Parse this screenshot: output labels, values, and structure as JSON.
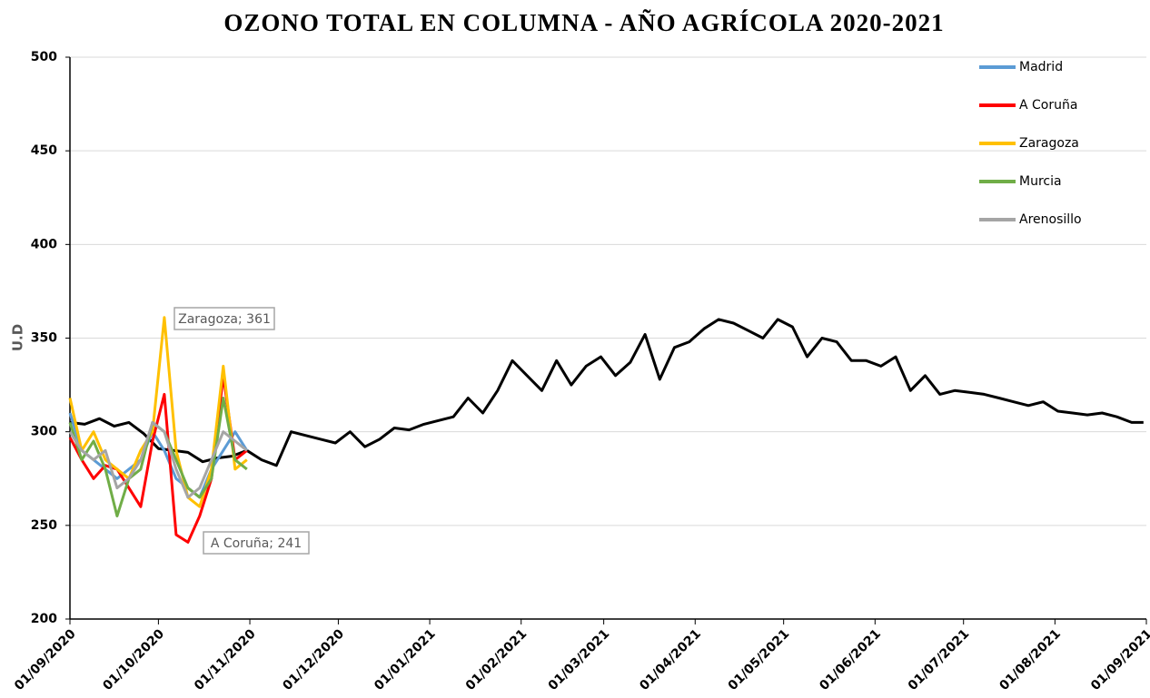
{
  "chart_data": {
    "type": "line",
    "title": "OZONO TOTAL EN COLUMNA - AÑO AGRÍCOLA 2020-2021",
    "y_label": "U.D",
    "xlim": [
      "01/09/2020",
      "01/09/2021"
    ],
    "xticks": [
      "01/09/2020",
      "01/10/2020",
      "01/11/2020",
      "01/12/2020",
      "01/01/2021",
      "01/02/2021",
      "01/03/2021",
      "01/04/2021",
      "01/05/2021",
      "01/06/2021",
      "01/07/2021",
      "01/08/2021",
      "01/09/2021"
    ],
    "ylim": [
      200,
      500
    ],
    "yticks": [
      200,
      250,
      300,
      350,
      400,
      450,
      500
    ],
    "grid": true,
    "legend": "top-right",
    "series": [
      {
        "color": "#000000",
        "x": [
          "01/09/2020",
          "06/09/2020",
          "11/09/2020",
          "16/09/2020",
          "21/09/2020",
          "26/09/2020",
          "01/10/2020",
          "06/10/2020",
          "11/10/2020",
          "16/10/2020",
          "21/10/2020",
          "26/10/2020",
          "31/10/2020",
          "05/11/2020",
          "10/11/2020",
          "15/11/2020",
          "20/11/2020",
          "25/11/2020",
          "30/11/2020",
          "05/12/2020",
          "10/12/2020",
          "15/12/2020",
          "20/12/2020",
          "25/12/2020",
          "30/12/2020",
          "04/01/2021",
          "09/01/2021",
          "14/01/2021",
          "19/01/2021",
          "24/01/2021",
          "29/01/2021",
          "03/02/2021",
          "08/02/2021",
          "13/02/2021",
          "18/02/2021",
          "23/02/2021",
          "28/02/2021",
          "05/03/2021",
          "10/03/2021",
          "15/03/2021",
          "20/03/2021",
          "25/03/2021",
          "30/03/2021",
          "04/04/2021",
          "09/04/2021",
          "14/04/2021",
          "19/04/2021",
          "24/04/2021",
          "29/04/2021",
          "04/05/2021",
          "09/05/2021",
          "14/05/2021",
          "19/05/2021",
          "24/05/2021",
          "29/05/2021",
          "03/06/2021",
          "08/06/2021",
          "13/06/2021",
          "18/06/2021",
          "23/06/2021",
          "28/06/2021",
          "03/07/2021",
          "08/07/2021",
          "13/07/2021",
          "18/07/2021",
          "23/07/2021",
          "28/07/2021",
          "02/08/2021",
          "07/08/2021",
          "12/08/2021",
          "17/08/2021",
          "22/08/2021",
          "27/08/2021",
          "31/08/2021"
        ],
        "values": [
          305,
          304,
          307,
          303,
          305,
          299,
          291,
          290,
          289,
          284,
          286,
          287,
          290,
          285,
          282,
          300,
          298,
          296,
          294,
          300,
          292,
          296,
          302,
          301,
          304,
          306,
          308,
          318,
          310,
          322,
          338,
          330,
          322,
          338,
          325,
          335,
          340,
          330,
          337,
          352,
          328,
          345,
          348,
          355,
          360,
          358,
          354,
          350,
          360,
          356,
          340,
          350,
          348,
          338,
          338,
          335,
          340,
          322,
          330,
          320,
          322,
          321,
          320,
          318,
          316,
          314,
          316,
          311,
          310,
          309,
          310,
          308,
          305,
          305
        ]
      },
      {
        "name": "Madrid",
        "color": "#5b9bd5",
        "x": [
          "01/09/2020",
          "05/09/2020",
          "09/09/2020",
          "13/09/2020",
          "17/09/2020",
          "21/09/2020",
          "25/09/2020",
          "29/09/2020",
          "03/10/2020",
          "07/10/2020",
          "11/10/2020",
          "15/10/2020",
          "19/10/2020",
          "23/10/2020",
          "27/10/2020",
          "31/10/2020"
        ],
        "values": [
          310,
          290,
          285,
          280,
          275,
          280,
          285,
          300,
          290,
          275,
          270,
          265,
          280,
          290,
          300,
          290
        ]
      },
      {
        "name": "A Coruña",
        "color": "#ff0000",
        "x": [
          "01/09/2020",
          "05/09/2020",
          "09/09/2020",
          "13/09/2020",
          "17/09/2020",
          "21/09/2020",
          "25/09/2020",
          "29/09/2020",
          "03/10/2020",
          "07/10/2020",
          "11/10/2020",
          "15/10/2020",
          "19/10/2020",
          "23/10/2020",
          "27/10/2020",
          "31/10/2020"
        ],
        "values": [
          297,
          285,
          275,
          282,
          280,
          270,
          260,
          295,
          320,
          245,
          241,
          255,
          275,
          330,
          285,
          290
        ]
      },
      {
        "name": "Zaragoza",
        "color": "#ffc000",
        "x": [
          "01/09/2020",
          "05/09/2020",
          "09/09/2020",
          "13/09/2020",
          "17/09/2020",
          "21/09/2020",
          "25/09/2020",
          "29/09/2020",
          "03/10/2020",
          "07/10/2020",
          "11/10/2020",
          "15/10/2020",
          "19/10/2020",
          "23/10/2020",
          "27/10/2020",
          "31/10/2020"
        ],
        "values": [
          318,
          290,
          300,
          285,
          280,
          275,
          290,
          300,
          361,
          290,
          265,
          260,
          280,
          335,
          280,
          285
        ]
      },
      {
        "name": "Murcia",
        "color": "#70ad47",
        "x": [
          "01/09/2020",
          "05/09/2020",
          "09/09/2020",
          "13/09/2020",
          "17/09/2020",
          "21/09/2020",
          "25/09/2020",
          "29/09/2020",
          "03/10/2020",
          "07/10/2020",
          "11/10/2020",
          "15/10/2020",
          "19/10/2020",
          "23/10/2020",
          "27/10/2020",
          "31/10/2020"
        ],
        "values": [
          305,
          285,
          295,
          280,
          255,
          275,
          280,
          305,
          300,
          285,
          270,
          265,
          275,
          318,
          285,
          280
        ]
      },
      {
        "name": "Arenosillo",
        "color": "#a5a5a5",
        "x": [
          "01/09/2020",
          "05/09/2020",
          "09/09/2020",
          "13/09/2020",
          "17/09/2020",
          "21/09/2020",
          "25/09/2020",
          "29/09/2020",
          "03/10/2020",
          "07/10/2020",
          "11/10/2020",
          "15/10/2020",
          "19/10/2020",
          "23/10/2020",
          "27/10/2020",
          "31/10/2020"
        ],
        "values": [
          300,
          290,
          285,
          290,
          270,
          275,
          285,
          305,
          300,
          280,
          265,
          270,
          285,
          300,
          295,
          290
        ]
      }
    ],
    "annotations": [
      {
        "text": "Zaragoza; 361"
      },
      {
        "text": "A Coruña; 241"
      }
    ]
  }
}
